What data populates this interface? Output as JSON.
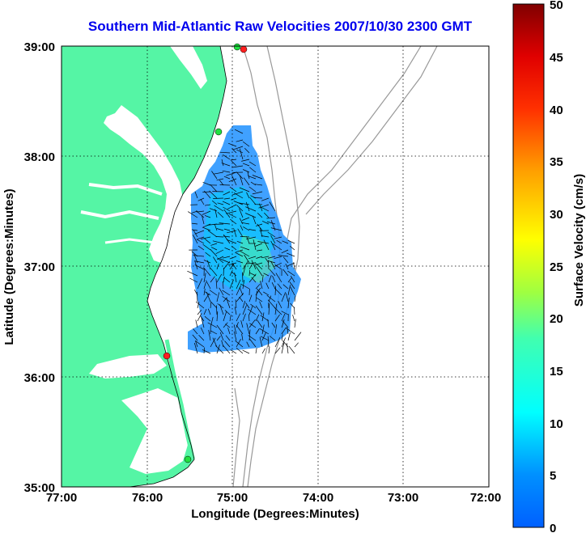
{
  "title": "Southern Mid-Atlantic Raw Velocities 2007/10/30 2300 GMT",
  "x_axis": {
    "label": "Longitude (Degrees:Minutes)",
    "ticks": [
      "77:00",
      "76:00",
      "75:00",
      "74:00",
      "73:00",
      "72:00"
    ]
  },
  "y_axis": {
    "label": "Latitude (Degrees:Minutes)",
    "ticks": [
      "39:00",
      "38:00",
      "37:00",
      "36:00",
      "35:00"
    ]
  },
  "colorbar": {
    "label": "Surface Velocity (cm/s)",
    "ticks": [
      "50",
      "45",
      "40",
      "35",
      "30",
      "25",
      "20",
      "15",
      "10",
      "5",
      "0"
    ],
    "min": 0,
    "max": 50
  },
  "colors": {
    "land": "#55f5a5",
    "title": "#0000ee",
    "bathymetry": "#999999"
  },
  "stations": [
    {
      "lon": -74.9,
      "lat": 38.95,
      "color": "red"
    },
    {
      "lon": -75.15,
      "lat": 38.2,
      "color": "green"
    },
    {
      "lon": -75.75,
      "lat": 36.2,
      "color": "red"
    },
    {
      "lon": -75.5,
      "lat": 35.25,
      "color": "green"
    }
  ]
}
